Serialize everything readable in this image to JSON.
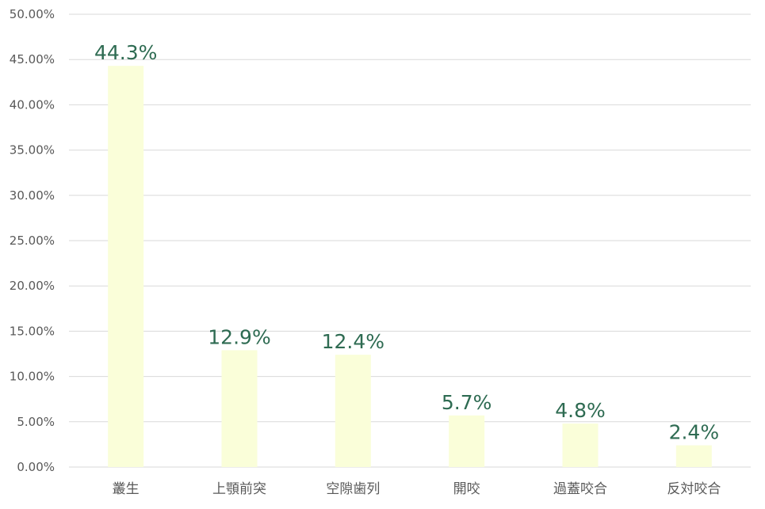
{
  "chart_data": {
    "type": "bar",
    "categories": [
      "叢生",
      "上顎前突",
      "空隙歯列",
      "開咬",
      "過蓋咬合",
      "反対咬合"
    ],
    "values": [
      44.3,
      12.9,
      12.4,
      5.7,
      4.8,
      2.4
    ],
    "data_labels": [
      "44.3%",
      "12.9%",
      "12.4%",
      "5.7%",
      "4.8%",
      "2.4%"
    ],
    "y_ticks": [
      "0.00%",
      "5.00%",
      "10.00%",
      "15.00%",
      "20.00%",
      "25.00%",
      "30.00%",
      "35.00%",
      "40.00%",
      "45.00%",
      "50.00%"
    ],
    "ylim": [
      0,
      50
    ],
    "grid": true,
    "legend": "none",
    "colors": {
      "bar": "#fafed9",
      "label": "#2e6b52",
      "grid": "#d9d9d9",
      "tick": "#595959"
    }
  }
}
